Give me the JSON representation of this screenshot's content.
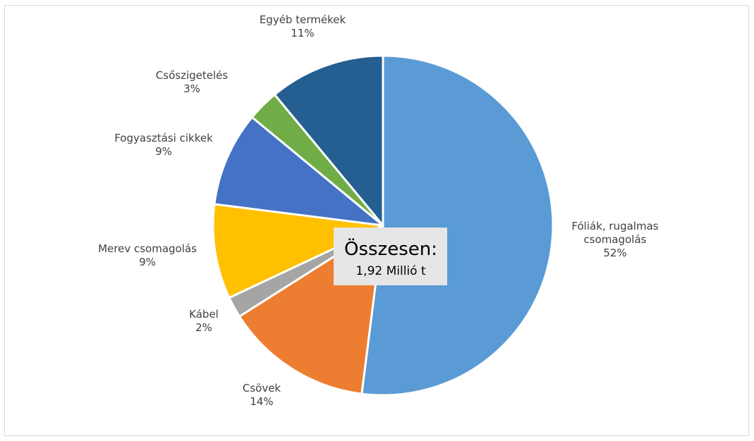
{
  "chart_data": {
    "type": "pie",
    "slices": [
      {
        "label_lines": [
          "Fóliák, rugalmas",
          "csomagolás"
        ],
        "value": 52,
        "value_label": "52%",
        "color": "#5B9BD5"
      },
      {
        "label_lines": [
          "Csövek"
        ],
        "value": 14,
        "value_label": "14%",
        "color": "#ED7D31"
      },
      {
        "label_lines": [
          "Kábel"
        ],
        "value": 2,
        "value_label": "2%",
        "color": "#A5A5A5"
      },
      {
        "label_lines": [
          "Merev csomagolás"
        ],
        "value": 9,
        "value_label": "9%",
        "color": "#FFC000"
      },
      {
        "label_lines": [
          "Fogyasztási cikkek"
        ],
        "value": 9,
        "value_label": "9%",
        "color": "#4472C4"
      },
      {
        "label_lines": [
          "Csőszigetelés"
        ],
        "value": 3,
        "value_label": "3%",
        "color": "#70AD47"
      },
      {
        "label_lines": [
          "Egyéb termékek"
        ],
        "value": 11,
        "value_label": "11%",
        "color": "#255E91"
      }
    ],
    "start_angle_deg": 0,
    "direction": "clockwise",
    "total_box": {
      "title": "Összesen:",
      "value": "1,92 Millió t",
      "background": "#E7E6E6"
    }
  }
}
